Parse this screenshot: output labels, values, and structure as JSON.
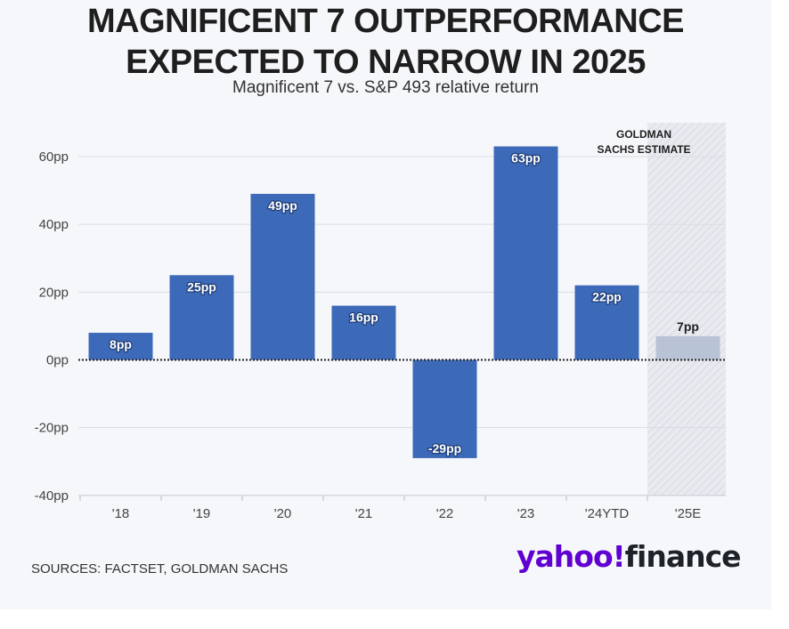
{
  "title_line1": "MAGNIFICENT 7 OUTPERFORMANCE",
  "title_line2": "EXPECTED TO NARROW IN 2025",
  "subtitle": "Magnificent 7 vs. S&P 493 relative return",
  "source": "SOURCES: FACTSET, GOLDMAN SACHS",
  "logo_yahoo": "yahoo!",
  "logo_finance": "finance",
  "estimate_label": [
    "GOLDMAN",
    "SACHS ESTIMATE"
  ],
  "colors": {
    "bar": "#3d6ab8",
    "estimate_bar": "#b9c3d6",
    "estimate_band": "#e6e8ed",
    "logo_purple": "#6001d2"
  },
  "chart_data": {
    "type": "bar",
    "categories": [
      "'18",
      "'19",
      "'20",
      "'21",
      "'22",
      "'23",
      "'24YTD",
      "'25E"
    ],
    "values": [
      8,
      25,
      49,
      16,
      -29,
      63,
      22,
      7
    ],
    "value_labels": [
      "8pp",
      "25pp",
      "49pp",
      "16pp",
      "-29pp",
      "63pp",
      "22pp",
      "7pp"
    ],
    "estimate_index": 7,
    "y_ticks": [
      60,
      40,
      20,
      0,
      -20,
      -40
    ],
    "y_tick_labels": [
      "60pp",
      "40pp",
      "20pp",
      "0pp",
      "-20pp",
      "-40pp"
    ],
    "ylim": [
      -40,
      70
    ],
    "grid": true,
    "xlabel": "",
    "ylabel": ""
  }
}
